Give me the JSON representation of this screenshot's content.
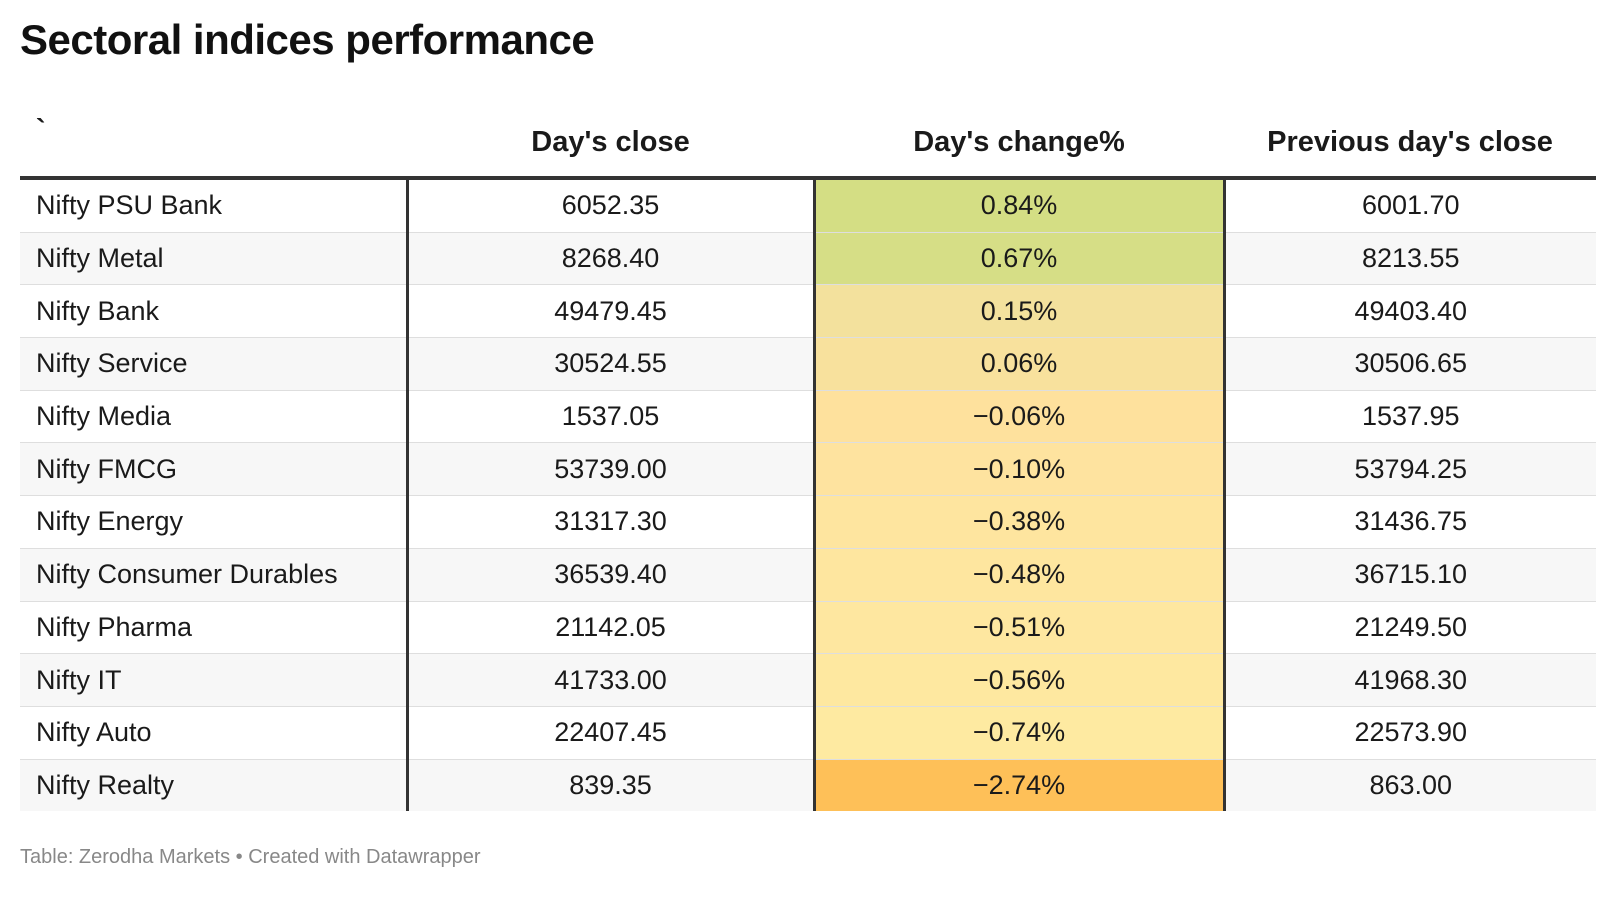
{
  "title": "Sectoral indices performance",
  "footer": "Table: Zerodha Markets • Created with Datawrapper",
  "chart_data": {
    "type": "table",
    "title": "Sectoral indices performance",
    "columns": [
      "`",
      "Day's close",
      "Day's change%",
      "Previous day's close"
    ],
    "rows": [
      {
        "name": "Nifty PSU Bank",
        "close": "6052.35",
        "change": "0.84%",
        "prev": "6001.70",
        "color": "#d4de84"
      },
      {
        "name": "Nifty Metal",
        "close": "8268.40",
        "change": "0.67%",
        "prev": "8213.55",
        "color": "#d6de86"
      },
      {
        "name": "Nifty Bank",
        "close": "49479.45",
        "change": "0.15%",
        "prev": "49403.40",
        "color": "#f3e19d"
      },
      {
        "name": "Nifty Service",
        "close": "30524.55",
        "change": "0.06%",
        "prev": "30506.65",
        "color": "#f8e19d"
      },
      {
        "name": "Nifty Media",
        "close": "1537.05",
        "change": "−0.06%",
        "prev": "1537.95",
        "color": "#fee19d"
      },
      {
        "name": "Nifty FMCG",
        "close": "53739.00",
        "change": "−0.10%",
        "prev": "53794.25",
        "color": "#fee39f"
      },
      {
        "name": "Nifty Energy",
        "close": "31317.30",
        "change": "−0.38%",
        "prev": "31436.75",
        "color": "#fee59f"
      },
      {
        "name": "Nifty Consumer Durables",
        "close": "36539.40",
        "change": "−0.48%",
        "prev": "36715.10",
        "color": "#fee69f"
      },
      {
        "name": "Nifty Pharma",
        "close": "21142.05",
        "change": "−0.51%",
        "prev": "21249.50",
        "color": "#fee7a0"
      },
      {
        "name": "Nifty IT",
        "close": "41733.00",
        "change": "−0.56%",
        "prev": "41968.30",
        "color": "#fee8a0"
      },
      {
        "name": "Nifty Auto",
        "close": "22407.45",
        "change": "−0.74%",
        "prev": "22573.90",
        "color": "#feeaa1"
      },
      {
        "name": "Nifty Realty",
        "close": "839.35",
        "change": "−2.74%",
        "prev": "863.00",
        "color": "#fec058"
      }
    ]
  }
}
